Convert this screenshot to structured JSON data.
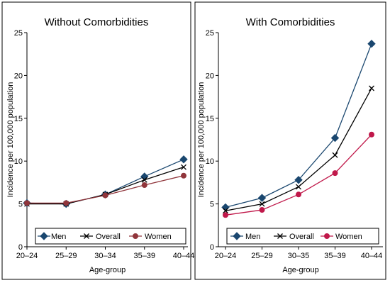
{
  "chart_data": [
    {
      "type": "line",
      "title": "Without Comorbidities",
      "xlabel": "Age-group",
      "ylabel": "Incidence per 100,000 population",
      "categories": [
        "20–24",
        "25–29",
        "30–34",
        "35–39",
        "40–44"
      ],
      "ylim": [
        0,
        25
      ],
      "yticks": [
        0,
        5,
        10,
        15,
        20,
        25
      ],
      "grid": false,
      "legend_position": "bottom",
      "series": [
        {
          "name": "Men",
          "values": [
            5.1,
            5.0,
            6.1,
            8.2,
            10.2
          ],
          "color": "#1a476f",
          "marker": "diamond"
        },
        {
          "name": "Overall",
          "values": [
            5.0,
            5.0,
            6.1,
            7.8,
            9.3
          ],
          "color": "#000000",
          "marker": "x"
        },
        {
          "name": "Women",
          "values": [
            5.1,
            5.1,
            6.0,
            7.2,
            8.3
          ],
          "color": "#90353b",
          "marker": "circle"
        }
      ]
    },
    {
      "type": "line",
      "title": "With Comorbidities",
      "xlabel": "Age-group",
      "ylabel": "Incidence per 100,000 population",
      "categories": [
        "20–24",
        "25–29",
        "30–35",
        "35–39",
        "40–44"
      ],
      "ylim": [
        0,
        25
      ],
      "yticks": [
        0,
        5,
        10,
        15,
        20,
        25
      ],
      "grid": false,
      "legend_position": "bottom",
      "series": [
        {
          "name": "Men",
          "values": [
            4.6,
            5.7,
            7.8,
            12.7,
            23.7
          ],
          "color": "#1a476f",
          "marker": "diamond"
        },
        {
          "name": "Overall",
          "values": [
            4.2,
            5.0,
            7.0,
            10.7,
            18.5
          ],
          "color": "#000000",
          "marker": "x"
        },
        {
          "name": "Women",
          "values": [
            3.7,
            4.3,
            6.1,
            8.6,
            13.1
          ],
          "color": "#c0184a",
          "marker": "circle"
        }
      ]
    }
  ]
}
